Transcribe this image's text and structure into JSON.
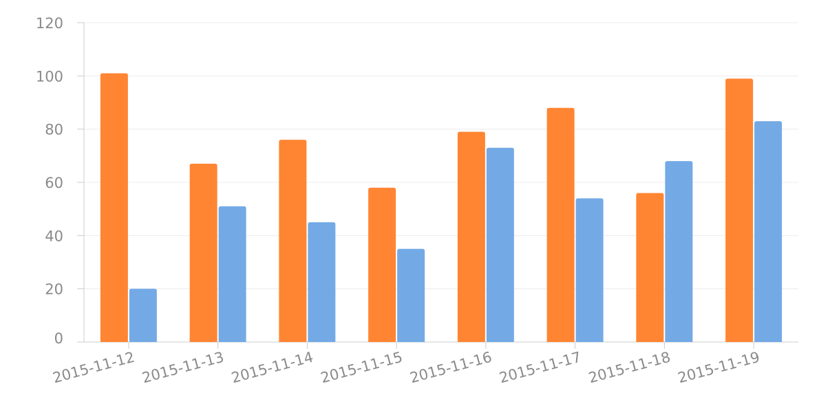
{
  "chart_data": {
    "type": "bar",
    "categories": [
      "2015-11-12",
      "2015-11-13",
      "2015-11-14",
      "2015-11-15",
      "2015-11-16",
      "2015-11-17",
      "2015-11-18",
      "2015-11-19"
    ],
    "series": [
      {
        "color": "#ff8533",
        "values": [
          101,
          67,
          76,
          58,
          79,
          88,
          56,
          99
        ]
      },
      {
        "color": "#73aae6",
        "values": [
          20,
          51,
          45,
          35,
          73,
          54,
          68,
          83
        ]
      }
    ],
    "yticks": [
      "0",
      "20",
      "40",
      "60",
      "80",
      "100",
      "120"
    ],
    "ylim": [
      0,
      120
    ],
    "grid": true,
    "legend": "none"
  }
}
